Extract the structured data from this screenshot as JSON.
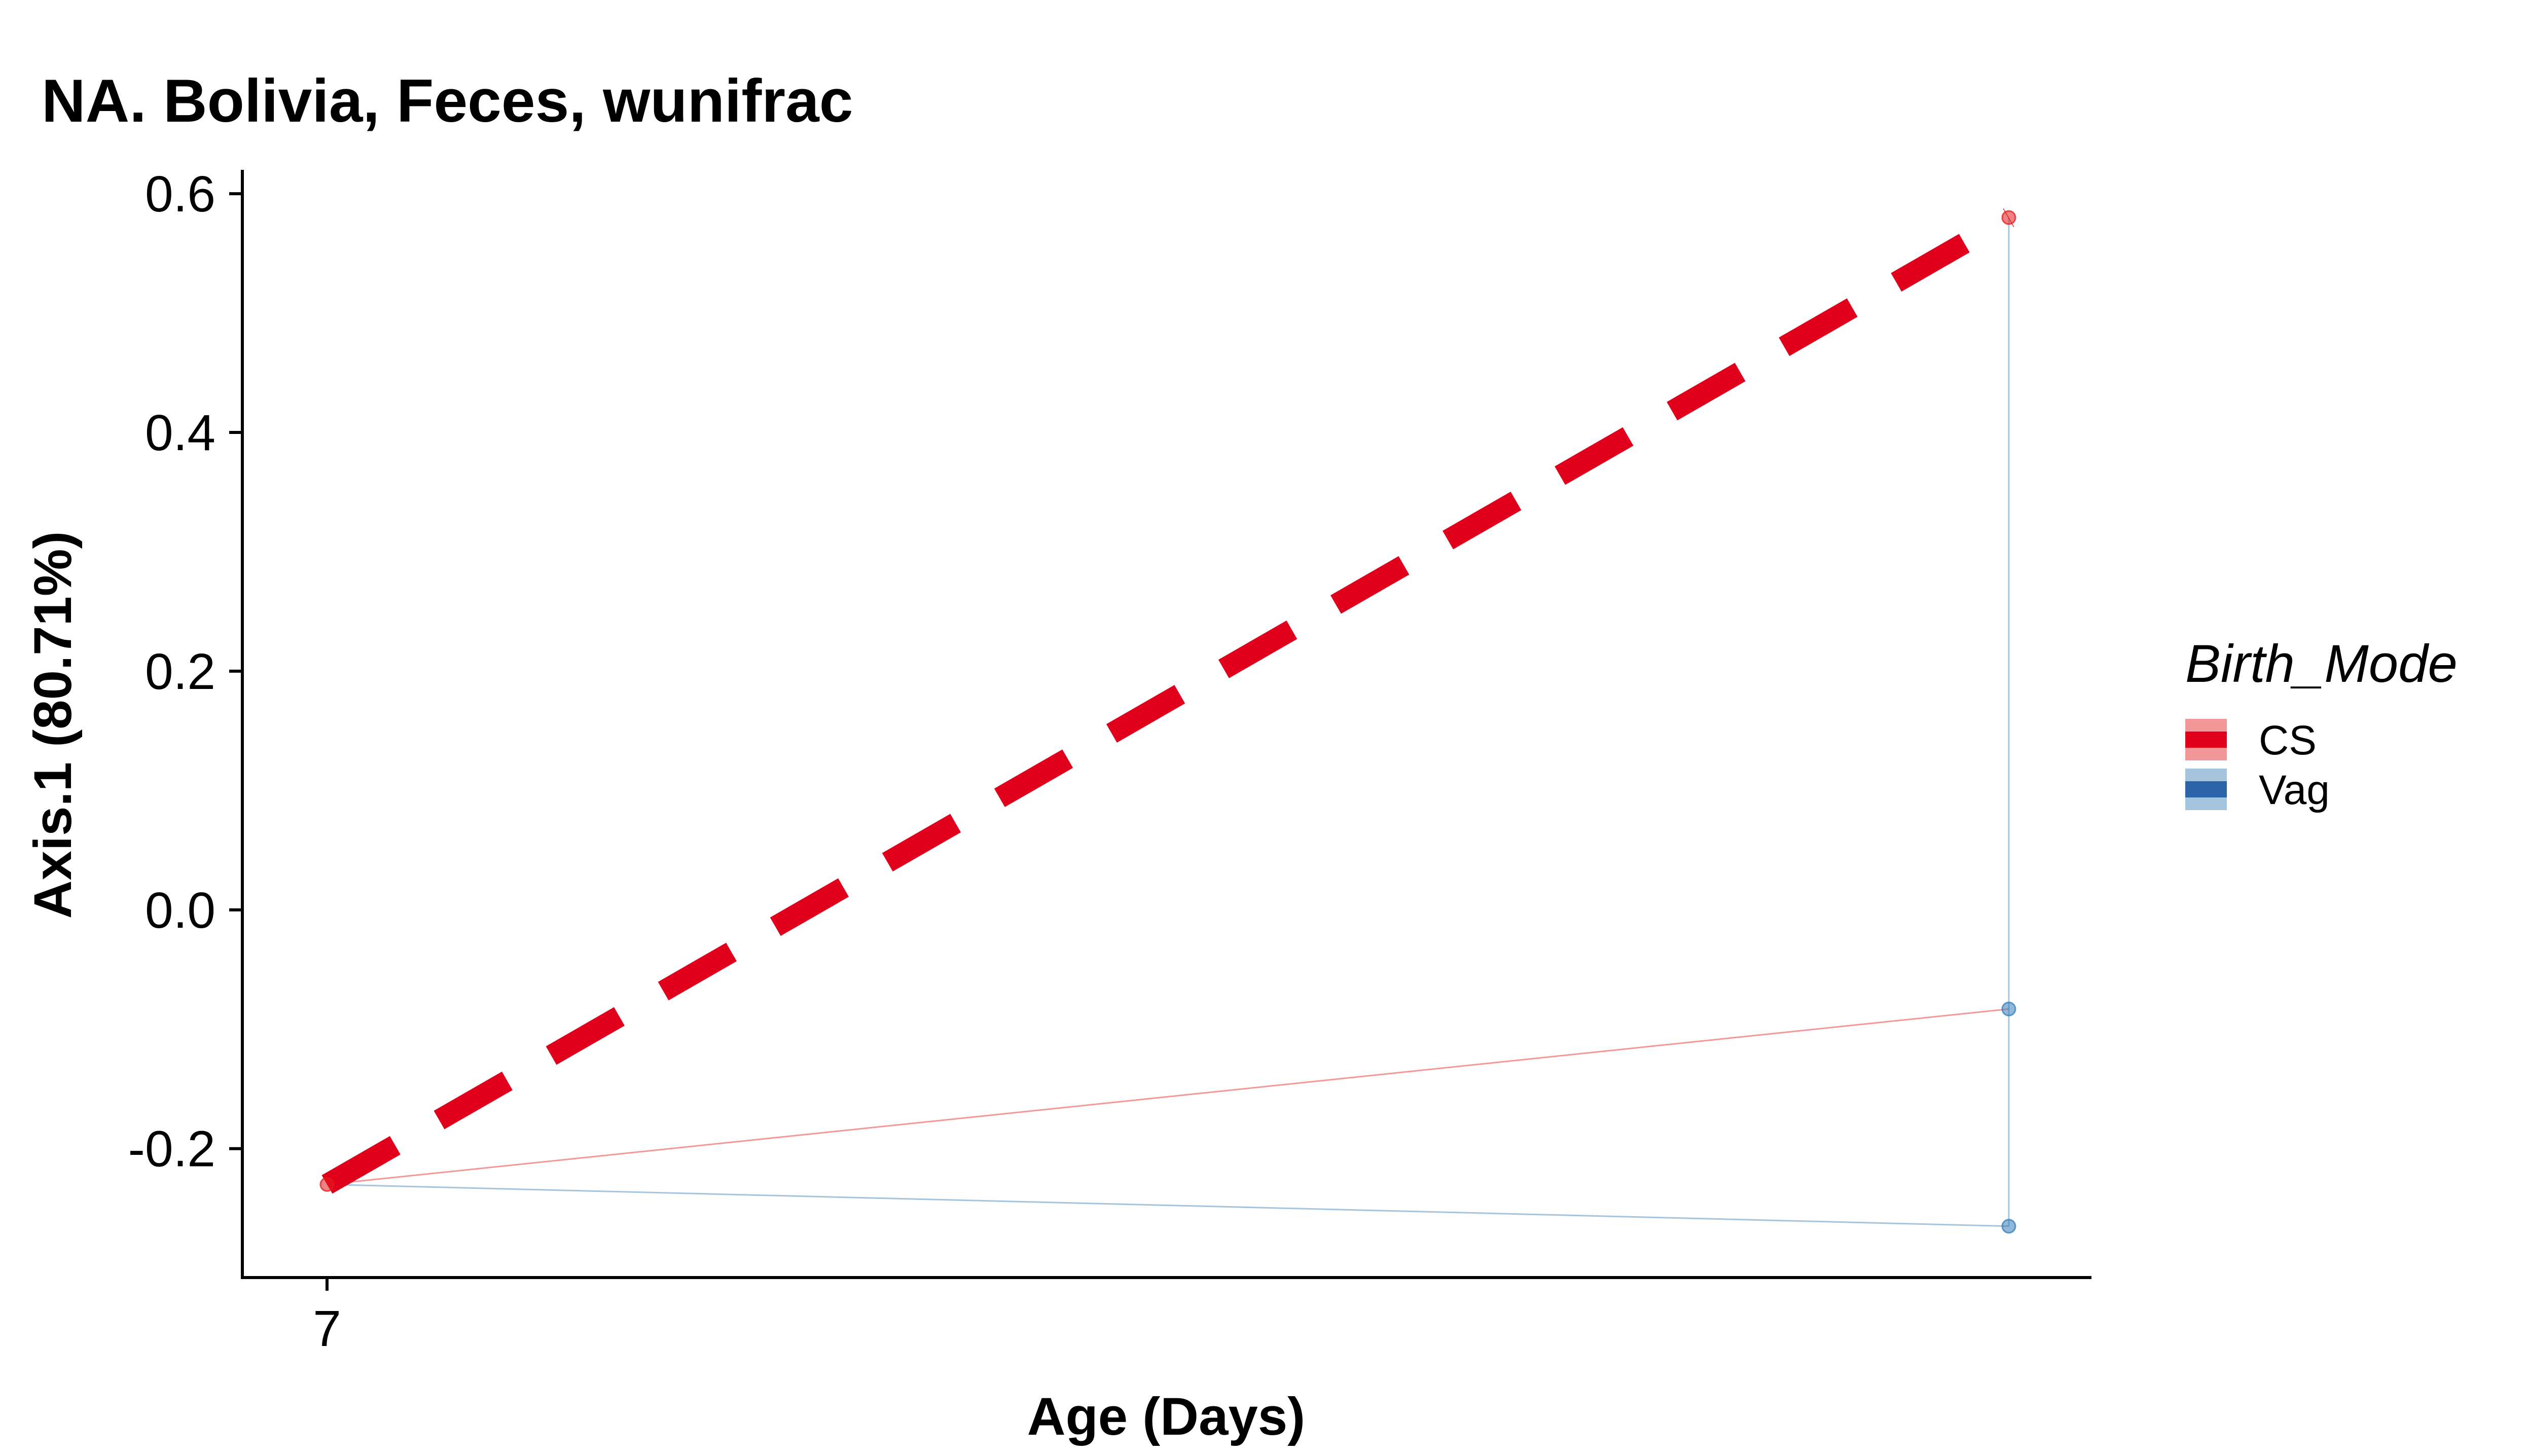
{
  "chart_data": {
    "type": "line",
    "title": "NA. Bolivia, Feces, wunifrac",
    "xlabel": "Age (Days)",
    "ylabel": "Axis.1 (80.71%)",
    "x_tick_labels": [
      "7"
    ],
    "y_ticks": [
      -0.2,
      0.0,
      0.2,
      0.4,
      0.6
    ],
    "y_tick_labels": [
      "-0.2",
      "0.0",
      "0.2",
      "0.4",
      "0.6"
    ],
    "ylim": [
      -0.308,
      0.62
    ],
    "grid": false,
    "legend": {
      "title": "Birth_Mode",
      "placement": "right",
      "entries": [
        {
          "label": "CS",
          "color": "#e41a1c",
          "line_color": "#e0001b"
        },
        {
          "label": "Vag",
          "color": "#377eb8",
          "line_color": "#2b65a8"
        }
      ]
    },
    "points": [
      {
        "group": "CS",
        "x": 0,
        "y": -0.23
      },
      {
        "group": "CS",
        "x": 1,
        "y": 0.58
      },
      {
        "group": "Vag",
        "x": 1,
        "y": -0.083
      },
      {
        "group": "Vag",
        "x": 1,
        "y": -0.265
      }
    ],
    "thin_lines": [
      {
        "group": "CS",
        "from": [
          0,
          -0.23
        ],
        "to": [
          1,
          -0.083
        ]
      },
      {
        "group": "Vag",
        "from": [
          0,
          -0.23
        ],
        "to": [
          1,
          -0.265
        ]
      },
      {
        "group": "Vag",
        "from": [
          1,
          0.58
        ],
        "to": [
          1,
          -0.265
        ]
      }
    ],
    "trend_lines": [
      {
        "group": "CS",
        "style": "dashed",
        "from": [
          0,
          -0.23
        ],
        "to": [
          1,
          0.58
        ]
      }
    ]
  }
}
